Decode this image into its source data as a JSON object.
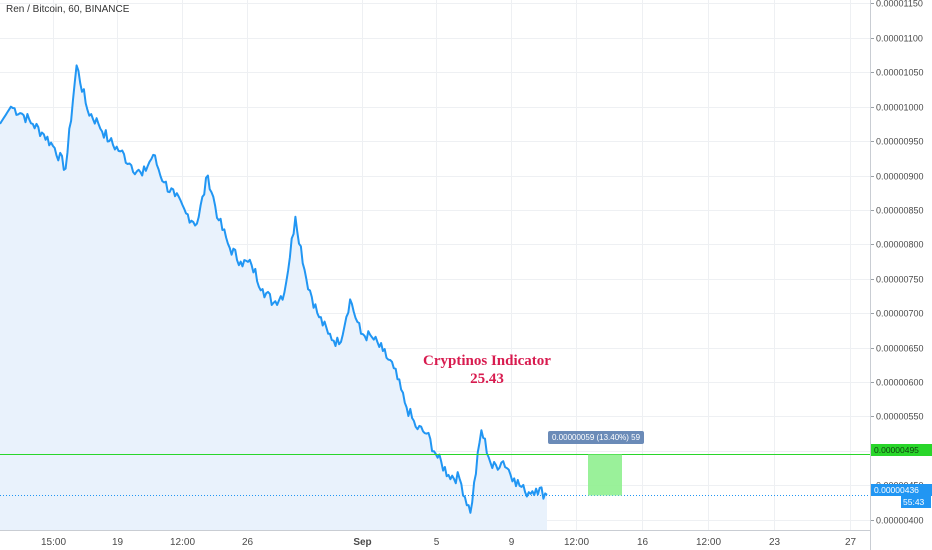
{
  "header": {
    "symbol_title": "Ren / Bitcoin, 60, BINANCE"
  },
  "annotation": {
    "title": "Cryptinos Indicator",
    "value": "25.43",
    "color": "#d81b4f"
  },
  "measure": {
    "label": "0.00000059 (13.40%) 59"
  },
  "price_tags": {
    "green_level": "0.00000495",
    "last_price": "0.00000436",
    "countdown": "55:43"
  },
  "colors": {
    "line": "#2196f3",
    "area": "#e9f2fc",
    "grid": "#eef0f3",
    "green": "#29d62a",
    "measure_box": "#8fef8f"
  },
  "chart_data": {
    "type": "area",
    "title": "Ren / Bitcoin, 60, BINANCE",
    "xlabel": "",
    "ylabel": "",
    "ylim": [
      3.85e-06,
      1.155e-05
    ],
    "y_ticks": [
      "0.00000400",
      "0.00000450",
      "0.00000500",
      "0.00000550",
      "0.00000600",
      "0.00000650",
      "0.00000700",
      "0.00000750",
      "0.00000800",
      "0.00000850",
      "0.00000900",
      "0.00000950",
      "0.00001000",
      "0.00001050",
      "0.00001100",
      "0.00001150"
    ],
    "x_ticks": [
      "15:00",
      "19",
      "12:00",
      "26",
      "Sep",
      "5",
      "9",
      "12:00",
      "16",
      "12:00",
      "23",
      "27"
    ],
    "horizontal_levels": [
      4.95e-06,
      4.36e-06
    ],
    "series": [
      {
        "values": [
          9.75e-06,
          1e-05,
          9.9e-06,
          9.75e-06,
          9.6e-06,
          9.4e-06,
          9.1e-06,
          1.06e-05,
          9.95e-06,
          9.75e-06,
          9.5e-06,
          9.35e-06,
          9.15e-06,
          9e-06,
          9.3e-06,
          8.9e-06,
          8.7e-06,
          8.45e-06,
          8.3e-06,
          9e-06,
          8.35e-06,
          7.95e-06,
          7.75e-06,
          7.7e-06,
          7.35e-06,
          7.15e-06,
          7.3e-06,
          8.4e-06,
          7.5e-06,
          7e-06,
          6.7e-06,
          6.55e-06,
          7.2e-06,
          6.7e-06,
          6.65e-06,
          6.45e-06,
          6.2e-06,
          5.7e-06,
          5.35e-06,
          5.25e-06,
          4.9e-06,
          4.65e-06,
          4.6e-06,
          4.1e-06,
          5.3e-06,
          4.75e-06,
          4.85e-06,
          4.6e-06,
          4.4e-06,
          4.45e-06,
          4.36e-06
        ]
      }
    ]
  }
}
